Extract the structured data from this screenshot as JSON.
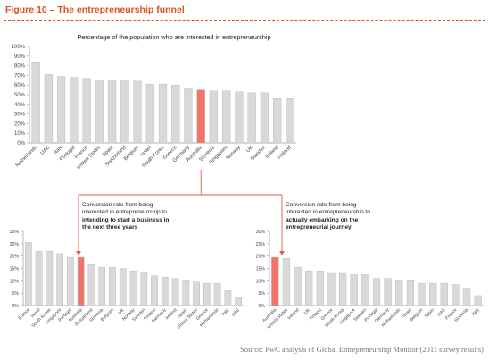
{
  "figure_title": "Figure 10 – The entrepreneurship funnel",
  "source_note": "Source: PwC analysis of Global Entrepreneurship Monitor (2011 survey results)",
  "colors": {
    "bar": "#d9d9d9",
    "highlight": "#f07468",
    "accent": "#d9541e",
    "connector": "#e05a4e"
  },
  "callouts": {
    "left": {
      "line1": "Conversion rate from being",
      "line2": "interested in entrepreneurship to",
      "line3": "intending to start a business in",
      "line4": "the next three years"
    },
    "right": {
      "line1": "Conversion rate from being",
      "line2": "interested in entrepreneurship to",
      "line3": "actually embarking on the",
      "line4": "entrepreneurial journey"
    }
  },
  "chart_data": [
    {
      "type": "bar",
      "title": "Percentage of the population  who are interested in entrepreneurship",
      "ylim": [
        0,
        100
      ],
      "yticks": [
        0,
        10,
        20,
        30,
        40,
        50,
        60,
        70,
        80,
        90,
        100
      ],
      "yunit": "%",
      "highlight": "Australia",
      "categories": [
        "Netherlands",
        "UAE",
        "Italy",
        "Portugal",
        "France",
        "United States",
        "Spain",
        "Switzerland",
        "Belgium",
        "Israel",
        "South Korea",
        "Greece",
        "Germany",
        "Australia",
        "Slovenia",
        "Singapore",
        "Norway",
        "UK",
        "Sweden",
        "Ireland",
        "Finland"
      ],
      "values": [
        84,
        71,
        69,
        68,
        67,
        65,
        65,
        65,
        64,
        61,
        61,
        60,
        56,
        55,
        54,
        54,
        53,
        52,
        52,
        46,
        46
      ]
    },
    {
      "type": "bar",
      "title": "",
      "ylim": [
        0,
        30
      ],
      "yticks": [
        0,
        5,
        10,
        15,
        20,
        25,
        30
      ],
      "yunit": "%",
      "highlight": "Australia",
      "categories": [
        "France",
        "Israel",
        "South Korea",
        "Singapore",
        "Portugal",
        "Australia",
        "Switzerland",
        "Slovenia",
        "Belgium",
        "UK",
        "Norway",
        "Sweden",
        "Finland",
        "Germany",
        "Ireland",
        "Spain",
        "United States",
        "Greece",
        "Netherlands",
        "Italy",
        "UAE"
      ],
      "values": [
        25.5,
        22,
        22,
        21,
        19.5,
        19.5,
        16.5,
        15.5,
        15.5,
        15,
        14,
        13.5,
        12,
        11.5,
        11,
        10,
        9.5,
        9,
        9,
        6,
        3.5
      ]
    },
    {
      "type": "bar",
      "title": "",
      "ylim": [
        0,
        30
      ],
      "yticks": [
        0,
        5,
        10,
        15,
        20,
        25,
        30
      ],
      "yunit": "%",
      "highlight": "Australia",
      "categories": [
        "Australia",
        "United States",
        "Ireland",
        "UK",
        "Finland",
        "Greece",
        "South Korea",
        "Singapore",
        "Sweden",
        "Portugal",
        "Germany",
        "Netherlands",
        "Israel",
        "Belgium",
        "Spain",
        "UAE",
        "France",
        "Slovenia",
        "Italy"
      ],
      "values": [
        19.5,
        19,
        15.5,
        14,
        14,
        13,
        13,
        12.5,
        12.5,
        11,
        11,
        10,
        10,
        9,
        9,
        9,
        8.5,
        7,
        4
      ]
    }
  ]
}
